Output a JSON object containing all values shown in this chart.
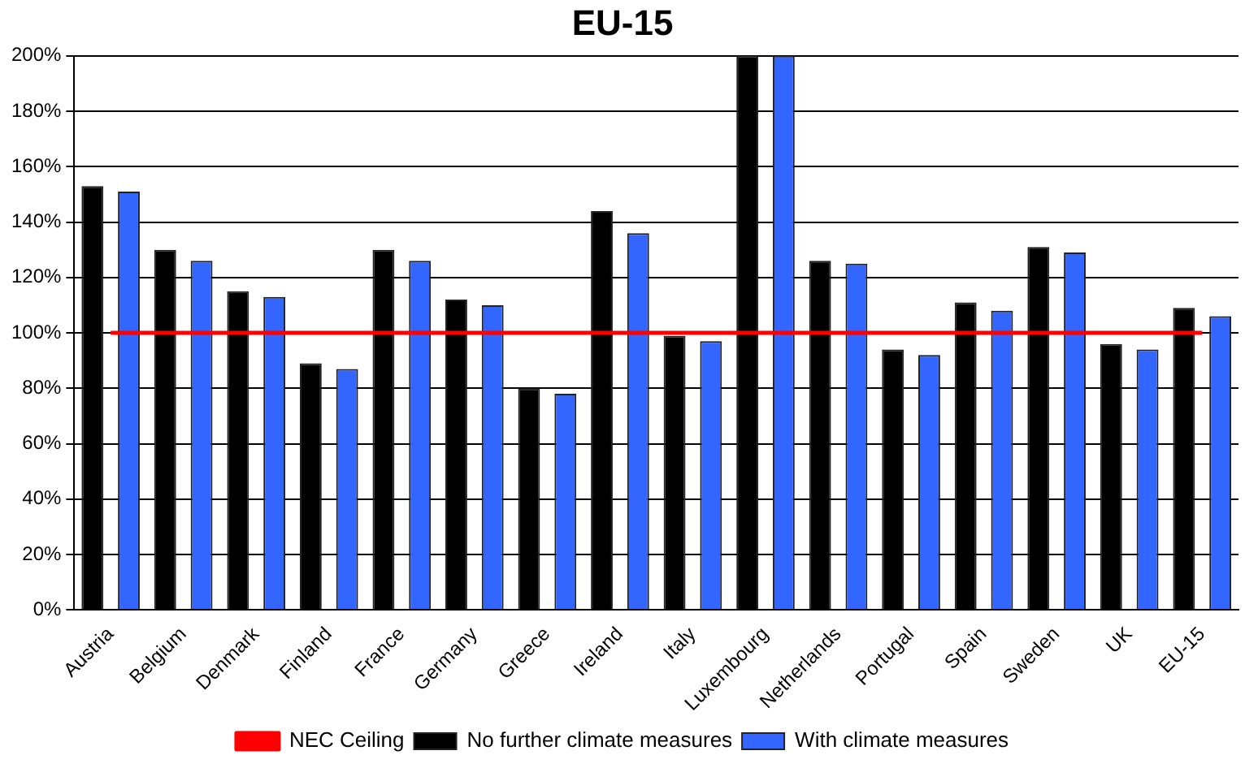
{
  "chart_data": {
    "type": "bar",
    "title": "EU-15",
    "categories": [
      "Austria",
      "Belgium",
      "Denmark",
      "Finland",
      "France",
      "Germany",
      "Greece",
      "Ireland",
      "Italy",
      "Luxembourg",
      "Netherlands",
      "Portugal",
      "Spain",
      "Sweden",
      "UK",
      "EU-15"
    ],
    "series": [
      {
        "name": "No further climate measures",
        "color": "#000000",
        "values": [
          153,
          130,
          115,
          89,
          130,
          112,
          80,
          144,
          99,
          200,
          126,
          94,
          111,
          131,
          96,
          109
        ]
      },
      {
        "name": "With climate measures",
        "color": "#3366ff",
        "values": [
          151,
          126,
          113,
          87,
          126,
          110,
          78,
          136,
          97,
          200,
          125,
          92,
          108,
          129,
          94,
          106
        ]
      },
      {
        "name": "NEC Ceiling",
        "type": "line",
        "color": "#ff0000",
        "values": [
          100,
          100,
          100,
          100,
          100,
          100,
          100,
          100,
          100,
          100,
          100,
          100,
          100,
          100,
          100,
          100
        ]
      }
    ],
    "ylim": [
      0,
      200
    ],
    "yticks": [
      {
        "value": 0,
        "label": "0%"
      },
      {
        "value": 20,
        "label": "20%"
      },
      {
        "value": 40,
        "label": "40%"
      },
      {
        "value": 60,
        "label": "60%"
      },
      {
        "value": 80,
        "label": "80%"
      },
      {
        "value": 100,
        "label": "100%"
      },
      {
        "value": 120,
        "label": "120%"
      },
      {
        "value": 140,
        "label": "140%"
      },
      {
        "value": 160,
        "label": "160%"
      },
      {
        "value": 180,
        "label": "180%"
      },
      {
        "value": 200,
        "label": "200%"
      }
    ],
    "grid": "y",
    "legend": "bottom",
    "marker": "none"
  }
}
